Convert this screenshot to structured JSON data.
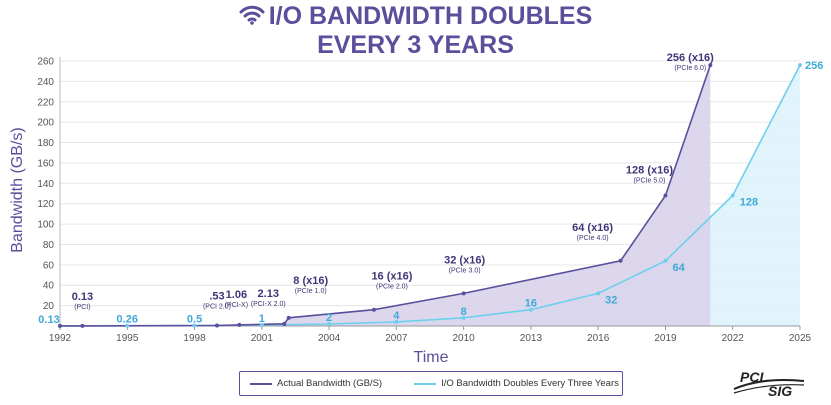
{
  "header": {
    "title_line1": "I/O BANDWIDTH DOUBLES",
    "title_line2": "EVERY 3 YEARS",
    "icon": "wifi-icon"
  },
  "colors": {
    "actual": "#5b4f9c",
    "doubling": "#6fd0ec",
    "actual_fill": "#d9d3ec",
    "doubling_fill": "#dcf2fb",
    "title": "#5b4f9c"
  },
  "chart_data": {
    "type": "area",
    "xlabel": "Time",
    "ylabel": "Bandwidth (GB/s)",
    "xlim": [
      1992,
      2025
    ],
    "ylim": [
      0,
      260
    ],
    "xticks": [
      1992,
      1995,
      1998,
      2001,
      2004,
      2007,
      2010,
      2013,
      2016,
      2019,
      2022,
      2025
    ],
    "yticks": [
      20,
      40,
      60,
      80,
      100,
      120,
      140,
      160,
      180,
      200,
      220,
      240,
      260
    ],
    "grid": "horizontal",
    "legend_position": "bottom",
    "series": [
      {
        "name": "Actual Bandwidth (GB/S)",
        "color": "#5b4f9c",
        "points": [
          {
            "x": 1992,
            "y": 0.13
          },
          {
            "x": 1993,
            "y": 0.13,
            "label": "0.13",
            "sublabel": "(PCI)"
          },
          {
            "x": 1999,
            "y": 0.53,
            "label": ".53",
            "sublabel": "(PCI 2.0)"
          },
          {
            "x": 2000,
            "y": 1.06,
            "label": "1.06",
            "sublabel": "(PCI-X)"
          },
          {
            "x": 2002,
            "y": 2.13,
            "label": "2.13",
            "sublabel": "(PCI-X 2.0)"
          },
          {
            "x": 2002.2,
            "y": 8,
            "label": "8 (x16)",
            "sublabel": "(PCIe 1.0)"
          },
          {
            "x": 2006,
            "y": 16,
            "label": "16 (x16)",
            "sublabel": "(PCIe 2.0)"
          },
          {
            "x": 2010,
            "y": 32,
            "label": "32 (x16)",
            "sublabel": "(PCIe 3.0)"
          },
          {
            "x": 2017,
            "y": 64,
            "label": "64 (x16)",
            "sublabel": "(PCIe 4.0)"
          },
          {
            "x": 2019,
            "y": 128,
            "label": "128 (x16)",
            "sublabel": "(PCIe 5.0)"
          },
          {
            "x": 2021,
            "y": 256,
            "label": "256 (x16)",
            "sublabel": "(PCIe 6.0)"
          }
        ]
      },
      {
        "name": "I/O Bandwidth Doubles Every Three Years",
        "color": "#6fd0ec",
        "points": [
          {
            "x": 1992,
            "y": 0.13,
            "label": "0.13"
          },
          {
            "x": 1995,
            "y": 0.26,
            "label": "0.26"
          },
          {
            "x": 1998,
            "y": 0.5,
            "label": "0.5"
          },
          {
            "x": 2001,
            "y": 1,
            "label": "1"
          },
          {
            "x": 2004,
            "y": 2,
            "label": "2"
          },
          {
            "x": 2007,
            "y": 4,
            "label": "4"
          },
          {
            "x": 2010,
            "y": 8,
            "label": "8"
          },
          {
            "x": 2013,
            "y": 16,
            "label": "16"
          },
          {
            "x": 2016,
            "y": 32,
            "label": "32"
          },
          {
            "x": 2019,
            "y": 64,
            "label": "64"
          },
          {
            "x": 2022,
            "y": 128,
            "label": "128"
          },
          {
            "x": 2025,
            "y": 256,
            "label": "256"
          }
        ]
      }
    ]
  },
  "logo": {
    "text_top": "PCI",
    "text_bottom": "SIG"
  }
}
